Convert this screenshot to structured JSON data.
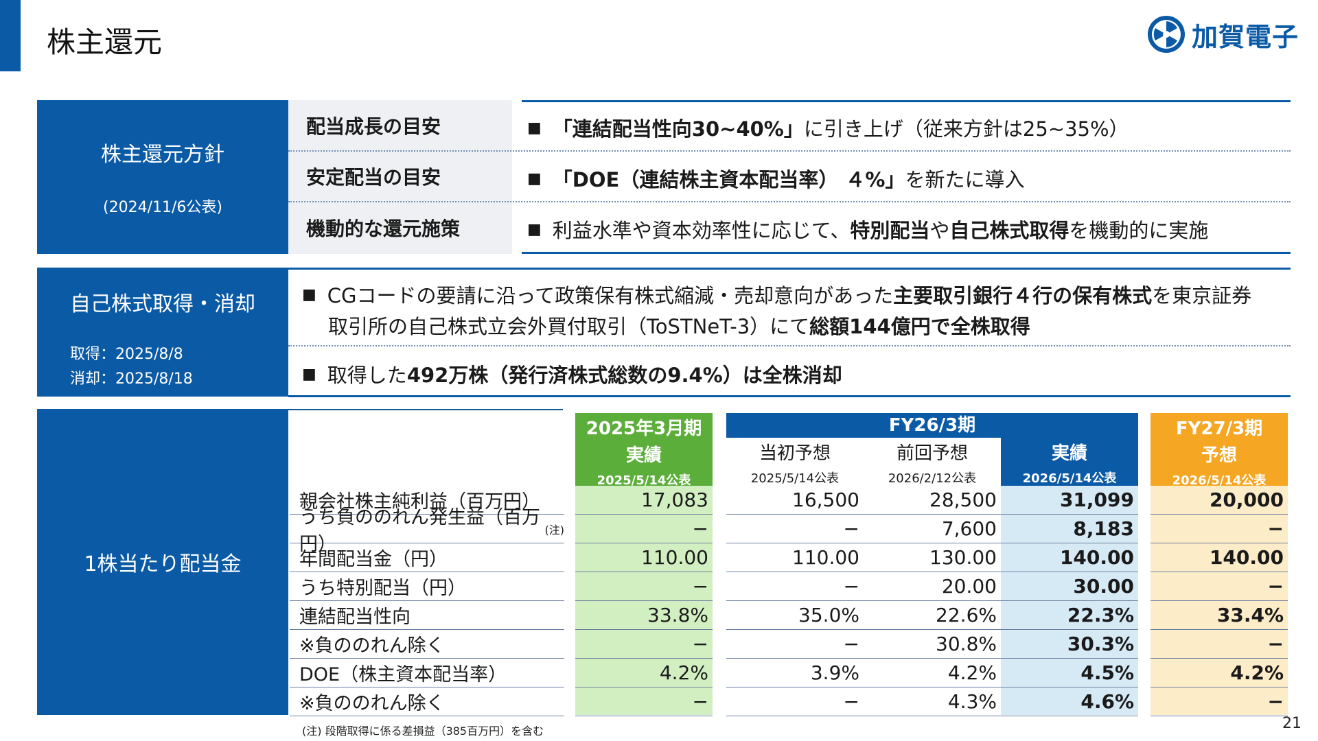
{
  "page": {
    "title": "株主還元",
    "page_number": "21",
    "footnote": "(注) 段階取得に係る差損益（385百万円）を含む"
  },
  "logo": {
    "text": "加賀電子"
  },
  "colors": {
    "brand_blue": "#0b5aa6",
    "green_fill": "#d2efc2",
    "green_header": "#5cae3a",
    "blue_fill": "#d6eaf6",
    "blue_header": "#0b5aa6",
    "orange_fill": "#fcecc8",
    "orange_header": "#f5a623"
  },
  "policy": {
    "label": "株主還元方針",
    "date": "(2024/11/6公表)",
    "rows": [
      {
        "label": "配当成長の目安",
        "bullet": "■",
        "pre": "",
        "bold": "「連結配当性向30~40%」",
        "post": "に引き上げ（従来方針は25~35%）"
      },
      {
        "label": "安定配当の目安",
        "bullet": "■",
        "pre": "",
        "bold": "「DOE（連結株主資本配当率） ４%」",
        "post": "を新たに導入"
      },
      {
        "label": "機動的な還元施策",
        "bullet": "■",
        "pre": "利益水準や資本効率性に応じて、",
        "bold": "特別配当",
        "mid": "や",
        "bold2": "自己株式取得",
        "post": "を機動的に実施"
      }
    ]
  },
  "buyback": {
    "label": "自己株式取得・消却",
    "date1": "取得：2025/8/8",
    "date2": "消却：2025/8/18",
    "b1_bullet": "■",
    "b1_l1_pre": "CGコードの要請に沿って政策保有株式縮減・売却意向があった",
    "b1_l1_bold": "主要取引銀行４行の保有株式",
    "b1_l1_post": "を東京証券",
    "b1_l2_pre": "取引所の自己株式立会外買付取引（ToSTNeT-3）にて",
    "b1_l2_bold": "総額144億円で全株取得",
    "b2_bullet": "■",
    "b2_pre": "取得した",
    "b2_bold": "492万株（発行済株式総数の9.4%）は全株消却"
  },
  "dividend": {
    "label": "1株当たり配当金",
    "headers": {
      "fy25_top": "2025年3月期",
      "fy25_mid": "実績",
      "fy25_date": "2025/5/14公表",
      "fy26_top": "FY26/3期",
      "fy26_init": "当初予想",
      "fy26_init_date": "2025/5/14公表",
      "fy26_prev": "前回予想",
      "fy26_prev_date": "2026/2/12公表",
      "fy26_act": "実績",
      "fy26_act_date": "2026/5/14公表",
      "fy27_top": "FY27/3期",
      "fy27_mid": "予想",
      "fy27_date": "2026/5/14公表"
    },
    "rows": [
      {
        "label": "親会社株主純利益（百万円）",
        "note": "",
        "v": [
          "17,083",
          "16,500",
          "28,500",
          "31,099",
          "20,000"
        ]
      },
      {
        "label": "うち負ののれん発生益（百万円）",
        "note": "(注)",
        "v": [
          "−",
          "−",
          "7,600",
          "8,183",
          "−"
        ]
      },
      {
        "label": "年間配当金（円）",
        "note": "",
        "v": [
          "110.00",
          "110.00",
          "130.00",
          "140.00",
          "140.00"
        ]
      },
      {
        "label": "うち特別配当（円）",
        "note": "",
        "v": [
          "−",
          "−",
          "20.00",
          "30.00",
          "−"
        ]
      },
      {
        "label": "連結配当性向",
        "note": "",
        "v": [
          "33.8%",
          "35.0%",
          "22.6%",
          "22.3%",
          "33.4%"
        ]
      },
      {
        "label": "※負ののれん除く",
        "note": "",
        "v": [
          "−",
          "−",
          "30.8%",
          "30.3%",
          "−"
        ]
      },
      {
        "label": "DOE（株主資本配当率）",
        "note": "",
        "v": [
          "4.2%",
          "3.9%",
          "4.2%",
          "4.5%",
          "4.2%"
        ]
      },
      {
        "label": "※負ののれん除く",
        "note": "",
        "v": [
          "−",
          "−",
          "4.3%",
          "4.6%",
          "−"
        ]
      }
    ]
  }
}
